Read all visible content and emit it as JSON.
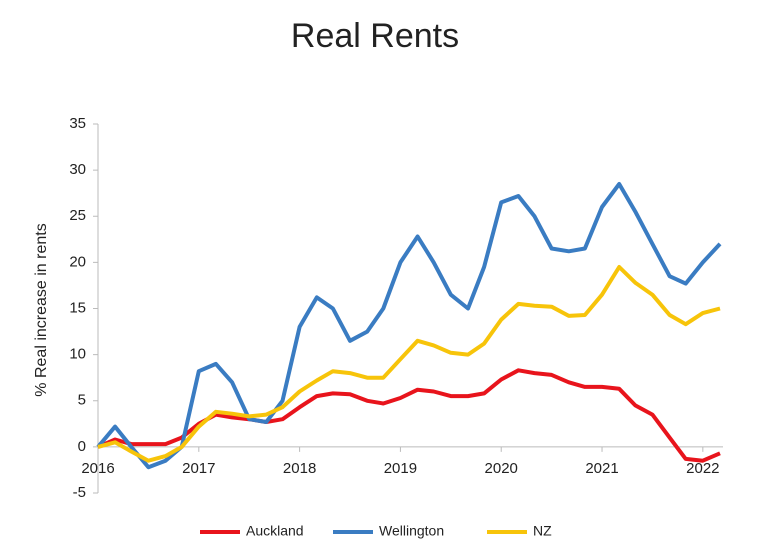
{
  "chart_data": {
    "type": "line",
    "title": "Real Rents",
    "y_label": "% Real increase in rents",
    "x": [
      2016,
      2016.17,
      2016.33,
      2016.5,
      2016.67,
      2016.83,
      2017,
      2017.17,
      2017.33,
      2017.5,
      2017.67,
      2017.83,
      2018,
      2018.17,
      2018.33,
      2018.5,
      2018.67,
      2018.83,
      2019,
      2019.17,
      2019.33,
      2019.5,
      2019.67,
      2019.83,
      2020,
      2020.17,
      2020.33,
      2020.5,
      2020.67,
      2020.83,
      2021,
      2021.17,
      2021.33,
      2021.5,
      2021.67,
      2021.83,
      2022,
      2022.17
    ],
    "series": [
      {
        "name": "Auckland",
        "color": "#e8141c",
        "values": [
          0,
          0.8,
          0.3,
          0.3,
          0.3,
          1,
          2.5,
          3.5,
          3.2,
          3,
          2.7,
          3,
          4.3,
          5.5,
          5.8,
          5.7,
          5,
          4.7,
          5.3,
          6.2,
          6,
          5.5,
          5.5,
          5.8,
          7.3,
          8.3,
          8,
          7.8,
          7,
          6.5,
          6.5,
          6.3,
          4.5,
          3.5,
          1,
          -1.3,
          -1.5,
          -0.7
        ]
      },
      {
        "name": "Wellington",
        "color": "#3a7cc2",
        "values": [
          0,
          2.2,
          0,
          -2.2,
          -1.5,
          0,
          8.2,
          9,
          7,
          3,
          2.7,
          5,
          13,
          16.2,
          15,
          11.5,
          12.5,
          15,
          20,
          22.8,
          20,
          16.5,
          15,
          19.5,
          26.5,
          27.2,
          25,
          21.5,
          21.2,
          21.5,
          26,
          28.5,
          25.5,
          22,
          18.5,
          17.7,
          20,
          22
        ]
      },
      {
        "name": "NZ",
        "color": "#f7c40a",
        "values": [
          0,
          0.5,
          -0.5,
          -1.5,
          -1,
          0,
          2.2,
          3.8,
          3.6,
          3.3,
          3.5,
          4.3,
          6,
          7.2,
          8.2,
          8,
          7.5,
          7.5,
          9.5,
          11.5,
          11,
          10.2,
          10,
          11.2,
          13.8,
          15.5,
          15.3,
          15.2,
          14.2,
          14.3,
          16.5,
          19.5,
          17.8,
          16.5,
          14.3,
          13.3,
          14.5,
          15
        ]
      }
    ],
    "xlim": [
      2016,
      2022.2
    ],
    "xticks": [
      2016,
      2017,
      2018,
      2019,
      2020,
      2021,
      2022
    ],
    "ylim": [
      -5,
      35
    ],
    "yticks": [
      -5,
      0,
      5,
      10,
      15,
      20,
      25,
      30,
      35
    ],
    "grid": false,
    "legend": "bottom"
  }
}
